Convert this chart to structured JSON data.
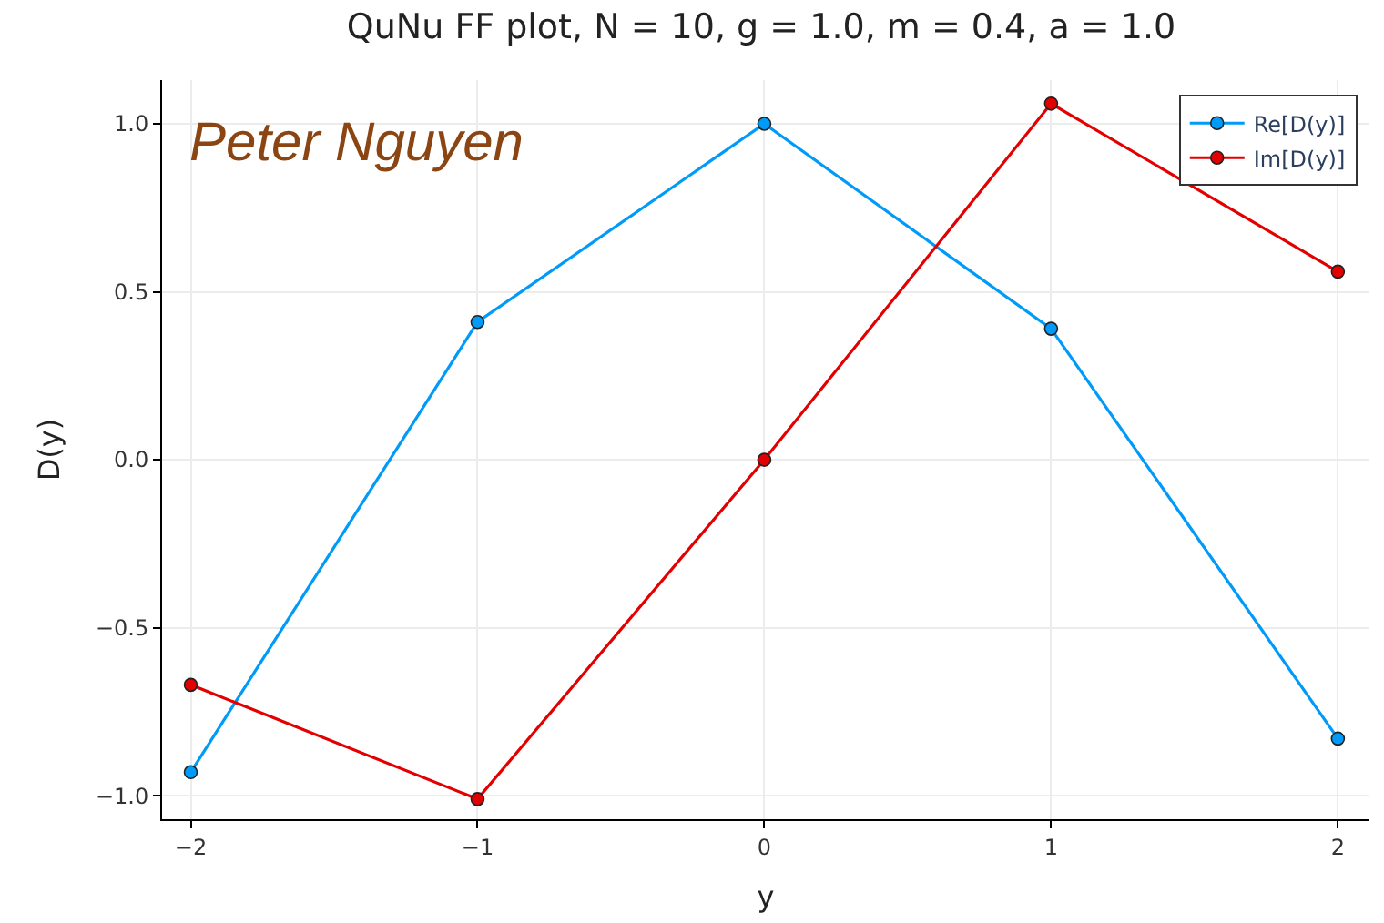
{
  "chart_data": {
    "type": "line",
    "title": "QuNu FF plot, N = 10, g = 1.0, m = 0.4, a = 1.0",
    "xlabel": "y",
    "ylabel": "D(y)",
    "x": [
      -2,
      -1,
      0,
      1,
      2
    ],
    "series": [
      {
        "name": "Re[D(y)]",
        "color": "#009af9",
        "values": [
          -0.93,
          0.41,
          1.0,
          0.39,
          -0.83
        ]
      },
      {
        "name": "Im[D(y)]",
        "color": "#e30000",
        "values": [
          -0.67,
          -1.01,
          0.0,
          1.06,
          0.56
        ]
      }
    ],
    "annotations": [
      "Peter Nguyen"
    ],
    "xlim": [
      -2.1,
      2.11
    ],
    "xticks": [
      {
        "value": -2,
        "label": "−2"
      },
      {
        "value": -1,
        "label": "−1"
      },
      0,
      1,
      2
    ],
    "ylim": [
      -1.07,
      1.13
    ],
    "yticks": [
      {
        "value": -1.0,
        "label": "−1.0"
      },
      {
        "value": -0.5,
        "label": "−0.5"
      },
      {
        "value": 0,
        "label": "0.0"
      },
      0.5,
      {
        "value": 1,
        "label": "1.0"
      }
    ],
    "grid": true,
    "legend": "top right",
    "marker": "circle",
    "line_style": "solid"
  }
}
